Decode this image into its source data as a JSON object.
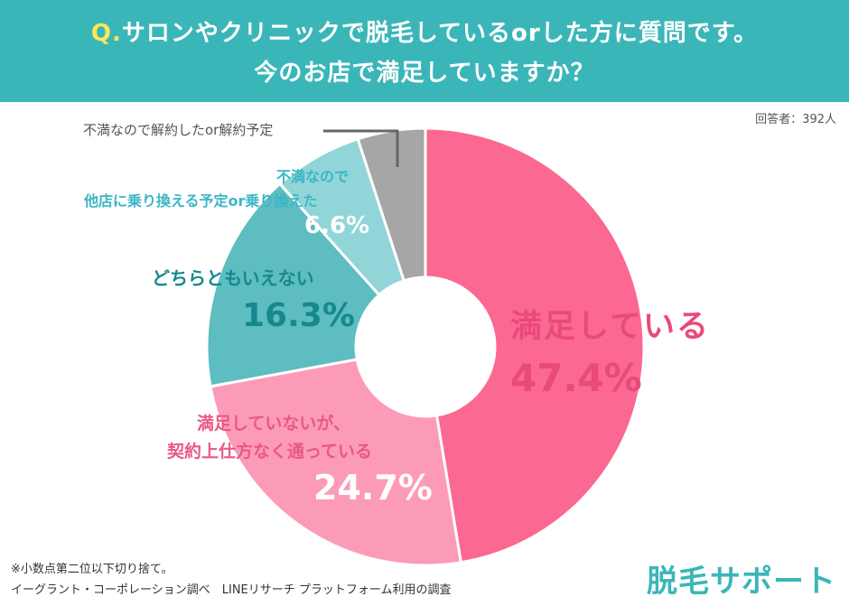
{
  "header": {
    "q_prefix": "Q.",
    "question_line1": "サロンやクリニックで脱毛しているorした方に質問です。",
    "question_line2": "今のお店で満足していますか？"
  },
  "respondents": "回答者：392人",
  "chart_data": {
    "type": "pie",
    "donut": true,
    "total_respondents": 392,
    "slices": [
      {
        "label_lines": [
          "満足している"
        ],
        "value": 47.4,
        "value_text": "47.4%",
        "color": "#fb6891"
      },
      {
        "label_lines": [
          "満足していないが、",
          "契約上仕方なく通っている"
        ],
        "value": 24.7,
        "value_text": "24.7%",
        "color": "#fc9bb7"
      },
      {
        "label_lines": [
          "どちらともいえない"
        ],
        "value": 16.3,
        "value_text": "16.3%",
        "color": "#5dbdc0"
      },
      {
        "label_lines": [
          "不満なので",
          "他店に乗り換える予定or乗り換えた"
        ],
        "value": 6.6,
        "value_text": "6.6%",
        "color": "#92d5d8"
      },
      {
        "label_lines": [
          "不満なので解約したor解約予定"
        ],
        "value": 5.0,
        "value_text": "",
        "color": "#a6a6a6"
      }
    ],
    "label_colors": {
      "pink": "#e94a7a",
      "pink_light": "#e95885",
      "teal_dark": "#17888d",
      "teal_light": "#3bb6c6",
      "gray": "#555555"
    }
  },
  "footnotes": {
    "line1": "※小数点第二位以下切り捨て。",
    "line2": "イーグラント・コーポレーション調べ　LINEリサーチ プラットフォーム利用の調査"
  },
  "brand": "脱毛サポート"
}
